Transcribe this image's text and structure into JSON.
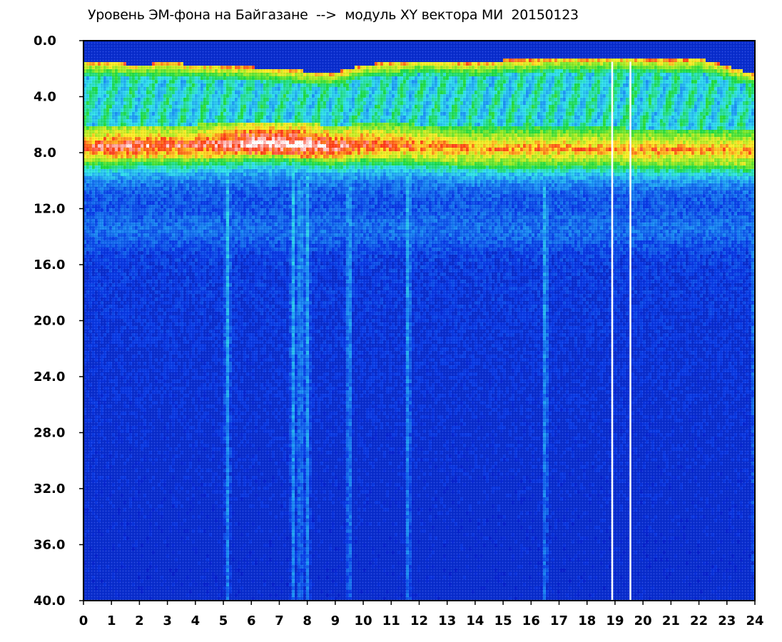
{
  "title": "Уровень ЭМ-фона на Байгазане  -->  модуль XY вектора МИ  20150123",
  "colors": {
    "background": "#0a2ecf",
    "low": "#0a3ad6",
    "mid_cyan": "#33ddee",
    "mid_green": "#22dd33",
    "high_yellow": "#ffee33",
    "high_red": "#ff2a1a",
    "saturated": "#ffffff",
    "gap_line": "#ffffff"
  },
  "chart_data": {
    "type": "heatmap",
    "title": "Уровень ЭМ-фона на Байгазане  -->  модуль XY вектора МИ  20150123",
    "xlabel": "",
    "ylabel": "",
    "xlim": [
      0,
      24
    ],
    "ylim": [
      40.0,
      0.0
    ],
    "y_axis_inverted": true,
    "x_ticks": [
      "0",
      "1",
      "2",
      "3",
      "4",
      "5",
      "6",
      "7",
      "8",
      "9",
      "10",
      "11",
      "12",
      "13",
      "14",
      "15",
      "16",
      "17",
      "18",
      "19",
      "20",
      "21",
      "22",
      "23",
      "24"
    ],
    "y_ticks": [
      "0.0",
      "4.0",
      "8.0",
      "12.0",
      "16.0",
      "20.0",
      "24.0",
      "28.0",
      "32.0",
      "36.0",
      "40.0"
    ],
    "hourly_upper_edge": [
      1.5,
      1.6,
      1.7,
      1.6,
      1.7,
      1.8,
      1.9,
      2.0,
      2.2,
      2.3,
      1.7,
      1.6,
      1.4,
      1.5,
      1.6,
      1.4,
      1.4,
      1.2,
      1.3,
      1.2,
      1.3,
      1.4,
      1.3,
      1.8,
      2.4
    ],
    "hourly_peak_band_center": [
      7.6,
      7.6,
      7.5,
      7.5,
      7.5,
      7.4,
      7.3,
      7.3,
      7.4,
      7.6,
      7.4,
      7.4,
      7.5,
      7.6,
      7.7,
      7.7,
      7.7,
      7.7,
      7.7,
      7.7,
      7.8,
      7.8,
      7.8,
      7.8,
      7.9
    ],
    "hourly_peak_intensity": [
      0.9,
      0.95,
      0.95,
      0.92,
      0.92,
      0.95,
      1.0,
      1.0,
      1.0,
      0.95,
      0.92,
      0.9,
      0.88,
      0.88,
      0.86,
      0.86,
      0.86,
      0.86,
      0.86,
      0.86,
      0.86,
      0.86,
      0.86,
      0.86,
      0.86
    ],
    "secondary_band_center": 13.5,
    "disturbance_events_hours": [
      5.15,
      7.5,
      7.75,
      8.0,
      9.5,
      11.6,
      16.5,
      24.0
    ],
    "data_gaps_hours": [
      18.9,
      19.55
    ]
  }
}
